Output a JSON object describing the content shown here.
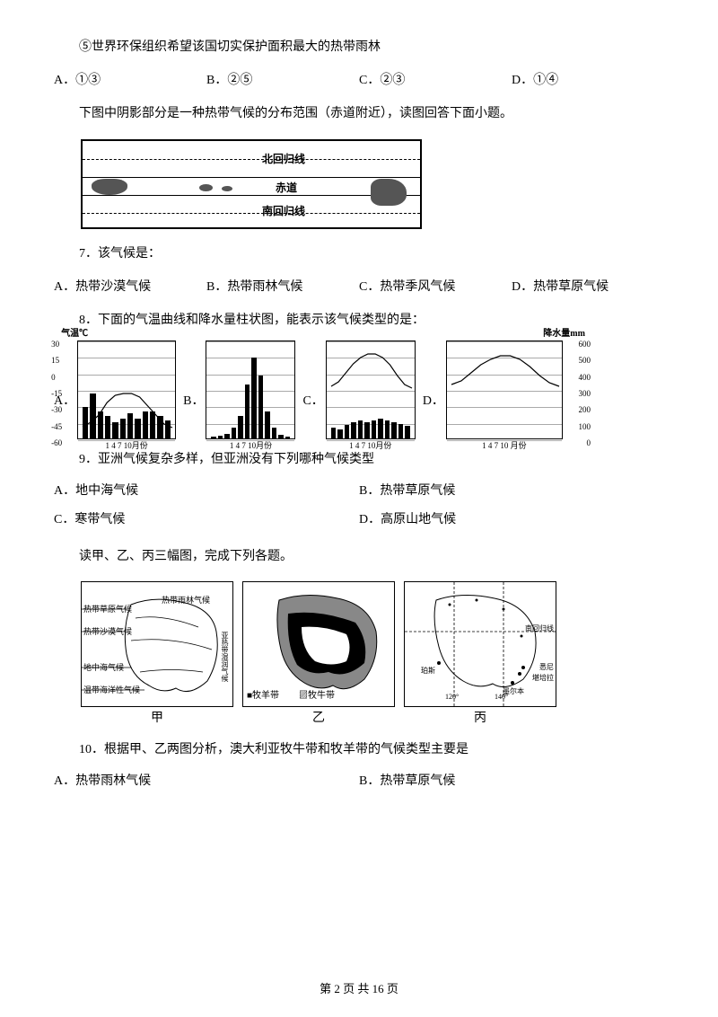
{
  "line5": "⑤世界环保组织希望该国切实保护面积最大的热带雨林",
  "q6_options": {
    "a": "A．①③",
    "b": "B．②⑤",
    "c": "C．②③",
    "d": "D．①④"
  },
  "intro2": "下图中阴影部分是一种热带气候的分布范围（赤道附近），读图回答下面小题。",
  "map1": {
    "tropic_n": "北回归线",
    "equator": "赤道",
    "tropic_s": "南回归线"
  },
  "q7": {
    "stem": "7．该气候是：",
    "a": "A．热带沙漠气候",
    "b": "B．热带雨林气候",
    "c": "C．热带季风气候",
    "d": "D．热带草原气候"
  },
  "q8": {
    "stem": "8．下面的气温曲线和降水量柱状图，能表示该气候类型的是：",
    "labels": {
      "a": "A．",
      "b": "B．",
      "c": "C．",
      "d": "D．"
    },
    "chart_a": {
      "y_title": "气温℃",
      "y_ticks": [
        "30",
        "15",
        "0",
        "-15",
        "-30",
        "-45",
        "-60"
      ],
      "x_label": "1  4  7  10月份",
      "bars": [
        35,
        50,
        30,
        25,
        18,
        22,
        28,
        22,
        30,
        30,
        25,
        20
      ],
      "temp_y": [
        95,
        90,
        82,
        68,
        60,
        58,
        58,
        62,
        72,
        82,
        92,
        96
      ]
    },
    "chart_b": {
      "x_label": "1  4  7  10月份",
      "bars": [
        2,
        3,
        5,
        12,
        25,
        60,
        90,
        70,
        30,
        12,
        4,
        2
      ]
    },
    "chart_c": {
      "x_label": "1  4  7  10月份",
      "bars": [
        12,
        10,
        15,
        18,
        20,
        18,
        20,
        22,
        20,
        18,
        16,
        14
      ],
      "temp_y": [
        50,
        45,
        35,
        25,
        18,
        14,
        14,
        18,
        26,
        38,
        48,
        52
      ]
    },
    "chart_d": {
      "y_title": "降水量mm",
      "y_ticks": [
        "600",
        "500",
        "400",
        "300",
        "200",
        "100",
        "0"
      ],
      "x_label": "1  4  7  10 月份",
      "temp_y": [
        48,
        44,
        35,
        26,
        20,
        16,
        16,
        20,
        28,
        38,
        46,
        50
      ]
    }
  },
  "q9": {
    "stem": "9．亚洲气候复杂多样，但亚洲没有下列哪种气候类型",
    "a": "A．地中海气候",
    "b": "B．热带草原气候",
    "c": "C．寒带气候",
    "d": "D．高原山地气候"
  },
  "intro3": "读甲、乙、丙三幅图，完成下列各题。",
  "aus": {
    "jia": "甲",
    "yi": "乙",
    "bing": "丙",
    "map_jia": {
      "l1": "热带草原气候",
      "l2": "热带沙漠气候",
      "l3": "地中海气候",
      "l4": "温带海洋性气候",
      "l5": "热带雨林气候",
      "l6": "亚热带湿润气候"
    },
    "map_yi": {
      "legend1": "■牧羊带",
      "legend2": "▨牧牛带"
    },
    "map_bing": {
      "l1": "南回归线",
      "l2": "珀斯",
      "l3": "墨尔本",
      "l4": "悉尼",
      "l5": "堪培拉",
      "t1": "120°",
      "t2": "140°"
    }
  },
  "q10": {
    "stem": "10．根据甲、乙两图分析，澳大利亚牧牛带和牧羊带的气候类型主要是",
    "a": "A．热带雨林气候",
    "b": "B．热带草原气候"
  },
  "footer": {
    "text": "第 2 页 共 16 页"
  }
}
